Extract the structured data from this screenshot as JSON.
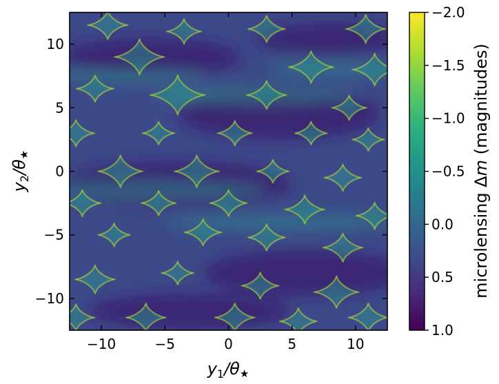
{
  "chart_data": {
    "type": "heatmap",
    "title": "",
    "xlabel_base": "y",
    "xlabel_sub": "1",
    "xlabel_tail": "/θ",
    "xlabel_star": "★",
    "ylabel_base": "y",
    "ylabel_sub": "2",
    "ylabel_tail": "/θ",
    "ylabel_star": "★",
    "xlim": [
      -12.5,
      12.5
    ],
    "ylim": [
      -12.5,
      12.5
    ],
    "xticks": [
      -10,
      -5,
      0,
      5,
      10
    ],
    "yticks": [
      -10,
      -5,
      0,
      5,
      10
    ],
    "xtick_labels": [
      "−10",
      "−5",
      "0",
      "5",
      "10"
    ],
    "ytick_labels": [
      "−10",
      "−5",
      "0",
      "5",
      "10"
    ],
    "grid": false,
    "colormap": "viridis",
    "colorbar": {
      "label_prefix": "microlensing ",
      "label_delta": "Δ",
      "label_m": "m",
      "label_suffix": " (magnitudes)",
      "range": [
        1.0,
        -2.0
      ],
      "ticks": [
        -2.0,
        -1.5,
        -1.0,
        -0.5,
        0.0,
        0.5,
        1.0
      ],
      "tick_labels": [
        "−2.0",
        "−1.5",
        "−1.0",
        "−0.5",
        "0.0",
        "0.5",
        "1.0"
      ]
    },
    "caustics": [
      {
        "x": -9.5,
        "y": 11.5,
        "r": 1.6
      },
      {
        "x": -3.5,
        "y": 11.0,
        "r": 1.4
      },
      {
        "x": 3.0,
        "y": 11.2,
        "r": 1.5
      },
      {
        "x": 10.8,
        "y": 11.2,
        "r": 1.6
      },
      {
        "x": -7.0,
        "y": 9.0,
        "r": 2.0
      },
      {
        "x": 6.5,
        "y": 8.2,
        "r": 1.8
      },
      {
        "x": 11.5,
        "y": 8.0,
        "r": 1.8
      },
      {
        "x": -10.5,
        "y": 6.5,
        "r": 1.5
      },
      {
        "x": -4.0,
        "y": 6.0,
        "r": 2.2
      },
      {
        "x": 3.0,
        "y": 6.0,
        "r": 1.6
      },
      {
        "x": 9.5,
        "y": 5.0,
        "r": 1.4
      },
      {
        "x": -12.0,
        "y": 3.0,
        "r": 1.5
      },
      {
        "x": -5.5,
        "y": 3.0,
        "r": 1.3
      },
      {
        "x": 0.5,
        "y": 3.0,
        "r": 1.4
      },
      {
        "x": 6.5,
        "y": 3.0,
        "r": 1.3
      },
      {
        "x": 11.0,
        "y": 2.5,
        "r": 1.3
      },
      {
        "x": -8.5,
        "y": 0.0,
        "r": 1.8
      },
      {
        "x": -2.5,
        "y": 0.0,
        "r": 1.8
      },
      {
        "x": 3.5,
        "y": 0.0,
        "r": 1.3
      },
      {
        "x": 9.0,
        "y": -0.5,
        "r": 1.5
      },
      {
        "x": -11.5,
        "y": -2.5,
        "r": 1.5
      },
      {
        "x": -5.5,
        "y": -2.5,
        "r": 1.4
      },
      {
        "x": 0.0,
        "y": -2.5,
        "r": 1.5
      },
      {
        "x": 6.0,
        "y": -3.0,
        "r": 1.6
      },
      {
        "x": 11.5,
        "y": -3.5,
        "r": 1.5
      },
      {
        "x": -9.0,
        "y": -5.0,
        "r": 1.3
      },
      {
        "x": -2.0,
        "y": -4.8,
        "r": 1.5
      },
      {
        "x": 3.0,
        "y": -5.2,
        "r": 1.5
      },
      {
        "x": 9.0,
        "y": -6.0,
        "r": 1.6
      },
      {
        "x": -10.5,
        "y": -8.5,
        "r": 1.6
      },
      {
        "x": -4.0,
        "y": -8.0,
        "r": 1.3
      },
      {
        "x": 2.5,
        "y": -9.0,
        "r": 1.5
      },
      {
        "x": 8.5,
        "y": -9.5,
        "r": 1.8
      },
      {
        "x": -12.0,
        "y": -11.5,
        "r": 1.5
      },
      {
        "x": -6.5,
        "y": -11.5,
        "r": 1.6
      },
      {
        "x": 0.5,
        "y": -11.5,
        "r": 1.6
      },
      {
        "x": 5.5,
        "y": -11.8,
        "r": 1.5
      },
      {
        "x": 11.0,
        "y": -11.5,
        "r": 1.6
      }
    ]
  }
}
